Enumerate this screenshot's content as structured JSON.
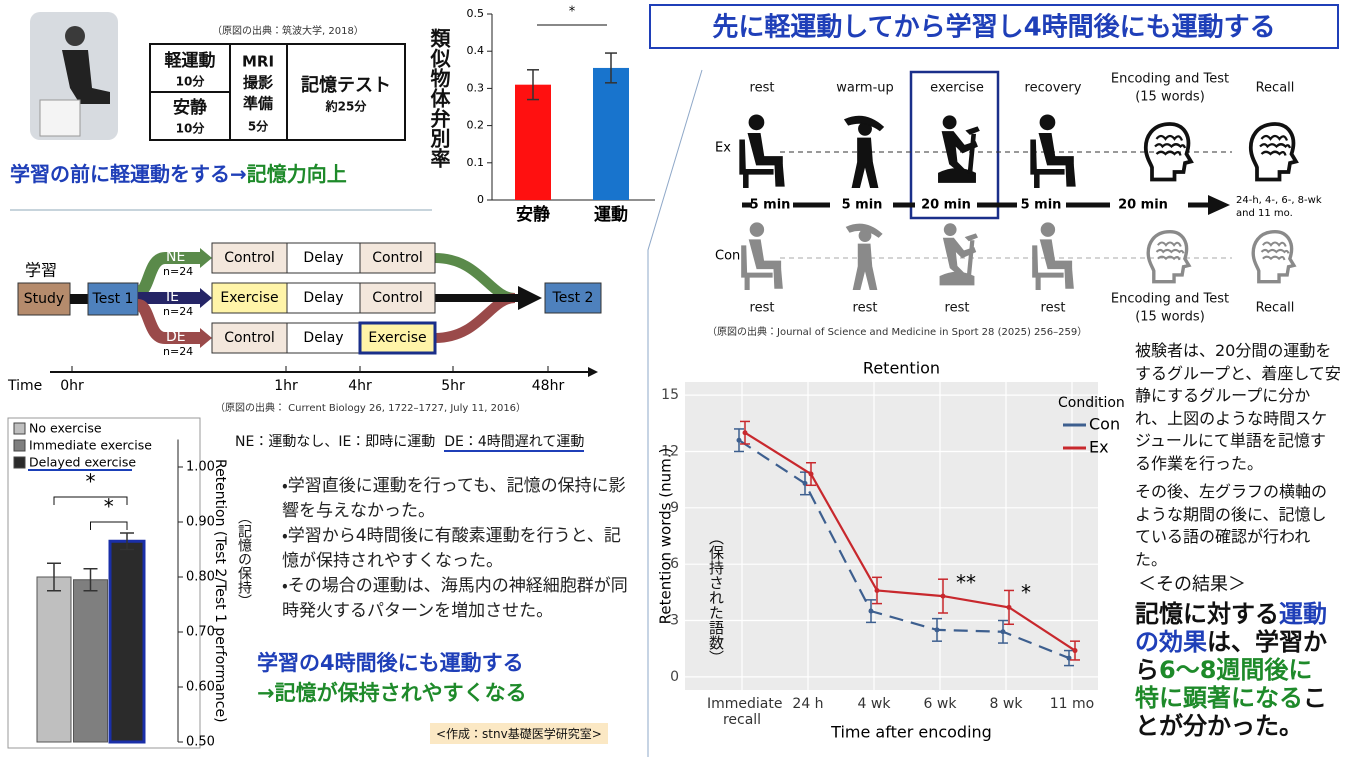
{
  "chart_data": [
    {
      "type": "bar",
      "y_label": "類似物体弁別率",
      "categories": [
        "安静",
        "運動"
      ],
      "values": [
        0.31,
        0.355
      ],
      "errors": [
        0.04,
        0.04
      ],
      "colors": [
        "#ff1010",
        "#1874cd"
      ],
      "ylim": [
        0,
        0.5
      ],
      "yticks": [
        0,
        0.1,
        0.2,
        0.3,
        0.4,
        0.5
      ],
      "annotations": [
        "*"
      ]
    },
    {
      "type": "bar",
      "series": [
        {
          "name": "No exercise",
          "color": "#bfbfbf",
          "values": [
            0.8
          ],
          "errors": [
            0.025
          ]
        },
        {
          "name": "Immediate exercise",
          "color": "#7f7f7f",
          "values": [
            0.795
          ],
          "errors": [
            0.02
          ]
        },
        {
          "name": "Delayed exercise",
          "color": "#2b2b2b",
          "values": [
            0.865
          ],
          "errors": [
            0.015
          ]
        }
      ],
      "ylim": [
        0.5,
        1.05
      ],
      "yticks": [
        {
          "value": 0.5,
          "label": "0.50"
        },
        {
          "value": 0.6,
          "label": "0.60"
        },
        {
          "value": 0.7,
          "label": "0.70"
        },
        {
          "value": 0.8,
          "label": "0.80"
        },
        {
          "value": 0.9,
          "label": "0.90"
        },
        {
          "value": 1.0,
          "label": "1.00"
        }
      ],
      "y_label": "Retention (Test 2/Test 1 performance)",
      "y_label_note": "（記憶の保持）",
      "axis_side": "right",
      "annotations": [
        "*",
        "*"
      ]
    },
    {
      "type": "line",
      "title": "Retention",
      "categories": [
        "Immediate recall",
        "24 h",
        "4 wk",
        "6 wk",
        "8 wk",
        "11 mo"
      ],
      "series": [
        {
          "name": "Con",
          "color": "#3d5f8f",
          "dash": true,
          "values": [
            12.6,
            10.3,
            3.5,
            2.5,
            2.4,
            1.0
          ],
          "errors": [
            0.6,
            0.6,
            0.6,
            0.6,
            0.6,
            0.4
          ]
        },
        {
          "name": "Ex",
          "color": "#c8282d",
          "dash": false,
          "values": [
            13.0,
            10.8,
            4.6,
            4.3,
            3.7,
            1.4
          ],
          "errors": [
            0.6,
            0.6,
            0.7,
            0.9,
            0.9,
            0.5
          ]
        }
      ],
      "ylim": [
        -0.7,
        15.7
      ],
      "yticks": [
        0,
        3,
        6,
        9,
        12,
        15
      ],
      "grid": true,
      "x_label": "Time after encoding",
      "y_label": "Retention words (num.)",
      "y_label_note": "（保持された語数）",
      "legend_title": "Condition",
      "annotations": [
        "**",
        "*"
      ]
    }
  ],
  "title": "先に軽運動してから学習し4時間後にも運動する",
  "study1": {
    "source": "（原図の出典：筑波大学, 2018）",
    "cells": [
      {
        "lines": [
          "軽運動"
        ],
        "time": "10分"
      },
      {
        "lines": [
          "安静"
        ],
        "time": "10分"
      },
      {
        "lines": [
          "MRI",
          "撮影",
          "準備"
        ],
        "time": "5分"
      },
      {
        "lines": [
          "記憶テスト"
        ],
        "time": "約25分"
      }
    ],
    "caption": [
      "学習の前に軽運動をする→",
      "記憶力向上"
    ]
  },
  "study2": {
    "learn": "学習",
    "study": "Study",
    "test1": "Test 1",
    "test2": "Test 2",
    "groups": [
      {
        "name": "NE",
        "n": "n=24",
        "cells": [
          "Control",
          "Delay",
          "Control"
        ]
      },
      {
        "name": "IE",
        "n": "n=24",
        "cells": [
          "Exercise",
          "Delay",
          "Control"
        ]
      },
      {
        "name": "DE",
        "n": "n=24",
        "cells": [
          "Control",
          "Delay",
          "Exercise"
        ]
      }
    ],
    "time_label": "Time",
    "times": [
      "0hr",
      "1hr",
      "4hr",
      "5hr",
      "48hr"
    ],
    "source": "（原図の出典： Current Biology 26, 1722–1727,  July 11, 2016）",
    "note": [
      "NE：運動なし、IE：即時に運動",
      "DE：4時間遅れて運動"
    ],
    "bullets": [
      "・学習直後に運動を行っても、記憶の保持に影響を与えなかった。",
      "・学習から4時間後に有酸素運動を行うと、記憶が保持されやすくなった。",
      "・その場合の運動は、海馬内の神経細胞群が同時発火するパターンを増加させた。"
    ],
    "conclusion": [
      "学習の4時間後にも運動する",
      "→記憶が保持されやすくなる"
    ],
    "credit": "<作成：stnv基礎医学研究室>"
  },
  "study3": {
    "stages": [
      "rest",
      "warm-up",
      "exercise",
      "recovery",
      [
        "Encoding and Test",
        "(15 words)"
      ],
      "Recall"
    ],
    "groups": [
      "Ex",
      "Con"
    ],
    "durations": [
      "5 min",
      "5 min",
      "20 min",
      "5 min",
      "20 min"
    ],
    "recall_times": [
      "24-h, 4-, 6-, 8-wk",
      "and 11 mo."
    ],
    "con_stages": [
      "rest",
      "rest",
      "rest",
      "rest",
      [
        "Encoding and Test",
        "(15 words)"
      ],
      "Recall"
    ],
    "source": "（原図の出典：Journal of Science and Medicine in Sport 28 (2025) 256–259）",
    "description": [
      "被験者は、20分間の運動をするグループと、着座して安静にするグループに分かれ、上図のような時間スケジュールにて単語を記憶する作業を行った。",
      "その後、左グラフの横軸のような期間の後に、記憶している語の確認が行われた。"
    ],
    "result_heading": "＜その結果＞",
    "result": [
      "記憶に対する",
      "運動の効果",
      "は、学習から",
      "6～8週間後に特に顕著になる",
      "ことが分かった。"
    ]
  }
}
